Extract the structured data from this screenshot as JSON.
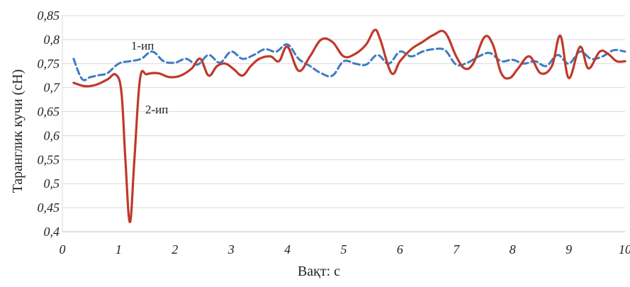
{
  "chart_data": {
    "type": "line",
    "title": "",
    "xlabel": "Вақт: с",
    "ylabel": "Таранглик кучи (сН)",
    "xlim": [
      0,
      10
    ],
    "ylim": [
      0.4,
      0.85
    ],
    "grid": true,
    "xticks": [
      0,
      1,
      2,
      3,
      4,
      5,
      6,
      7,
      8,
      9,
      10
    ],
    "xtick_labels": [
      "0",
      "1",
      "2",
      "3",
      "4",
      "5",
      "6",
      "7",
      "8",
      "9",
      "10"
    ],
    "yticks": [
      0.4,
      0.45,
      0.5,
      0.55,
      0.6,
      0.65,
      0.7,
      0.75,
      0.8,
      0.85
    ],
    "ytick_labels": [
      "0,4",
      "0,45",
      "0,5",
      "0,55",
      "0,6",
      "0,65",
      "0,7",
      "0,75",
      "0,8",
      "0,85"
    ],
    "series": [
      {
        "name": "1-ип",
        "color": "#3d7cc2",
        "style": "dashed",
        "x": [
          0.2,
          0.35,
          0.5,
          0.65,
          0.8,
          1.0,
          1.2,
          1.4,
          1.6,
          1.8,
          2.0,
          2.2,
          2.4,
          2.6,
          2.8,
          3.0,
          3.2,
          3.4,
          3.6,
          3.8,
          4.0,
          4.2,
          4.4,
          4.6,
          4.8,
          5.0,
          5.2,
          5.4,
          5.6,
          5.8,
          6.0,
          6.2,
          6.4,
          6.6,
          6.8,
          7.0,
          7.2,
          7.4,
          7.6,
          7.8,
          8.0,
          8.2,
          8.4,
          8.6,
          8.8,
          9.0,
          9.2,
          9.4,
          9.6,
          9.8,
          10.0
        ],
        "values": [
          0.76,
          0.718,
          0.722,
          0.726,
          0.73,
          0.75,
          0.755,
          0.76,
          0.775,
          0.755,
          0.752,
          0.76,
          0.748,
          0.768,
          0.752,
          0.775,
          0.76,
          0.768,
          0.78,
          0.775,
          0.79,
          0.76,
          0.745,
          0.73,
          0.725,
          0.755,
          0.75,
          0.748,
          0.768,
          0.75,
          0.775,
          0.765,
          0.775,
          0.78,
          0.778,
          0.748,
          0.752,
          0.765,
          0.772,
          0.755,
          0.758,
          0.75,
          0.755,
          0.745,
          0.768,
          0.75,
          0.775,
          0.76,
          0.765,
          0.778,
          0.775
        ]
      },
      {
        "name": "2-ип",
        "color": "#c0392b",
        "style": "solid",
        "x": [
          0.2,
          0.4,
          0.6,
          0.8,
          0.95,
          1.05,
          1.12,
          1.2,
          1.28,
          1.38,
          1.5,
          1.7,
          1.9,
          2.1,
          2.3,
          2.45,
          2.6,
          2.75,
          2.9,
          3.05,
          3.2,
          3.35,
          3.5,
          3.7,
          3.85,
          4.0,
          4.2,
          4.4,
          4.6,
          4.8,
          5.0,
          5.2,
          5.4,
          5.55,
          5.65,
          5.85,
          6.0,
          6.2,
          6.4,
          6.6,
          6.8,
          7.0,
          7.15,
          7.3,
          7.5,
          7.65,
          7.8,
          7.95,
          8.1,
          8.3,
          8.5,
          8.7,
          8.85,
          9.0,
          9.2,
          9.35,
          9.55,
          9.7,
          9.85,
          10.0
        ],
        "values": [
          0.71,
          0.703,
          0.706,
          0.717,
          0.727,
          0.69,
          0.55,
          0.42,
          0.55,
          0.718,
          0.728,
          0.73,
          0.722,
          0.725,
          0.74,
          0.76,
          0.725,
          0.745,
          0.75,
          0.738,
          0.725,
          0.745,
          0.76,
          0.765,
          0.755,
          0.785,
          0.735,
          0.765,
          0.8,
          0.795,
          0.765,
          0.77,
          0.79,
          0.82,
          0.8,
          0.73,
          0.755,
          0.78,
          0.795,
          0.81,
          0.815,
          0.765,
          0.74,
          0.75,
          0.805,
          0.79,
          0.73,
          0.72,
          0.74,
          0.765,
          0.73,
          0.745,
          0.808,
          0.72,
          0.785,
          0.74,
          0.775,
          0.77,
          0.755,
          0.755
        ]
      }
    ]
  }
}
